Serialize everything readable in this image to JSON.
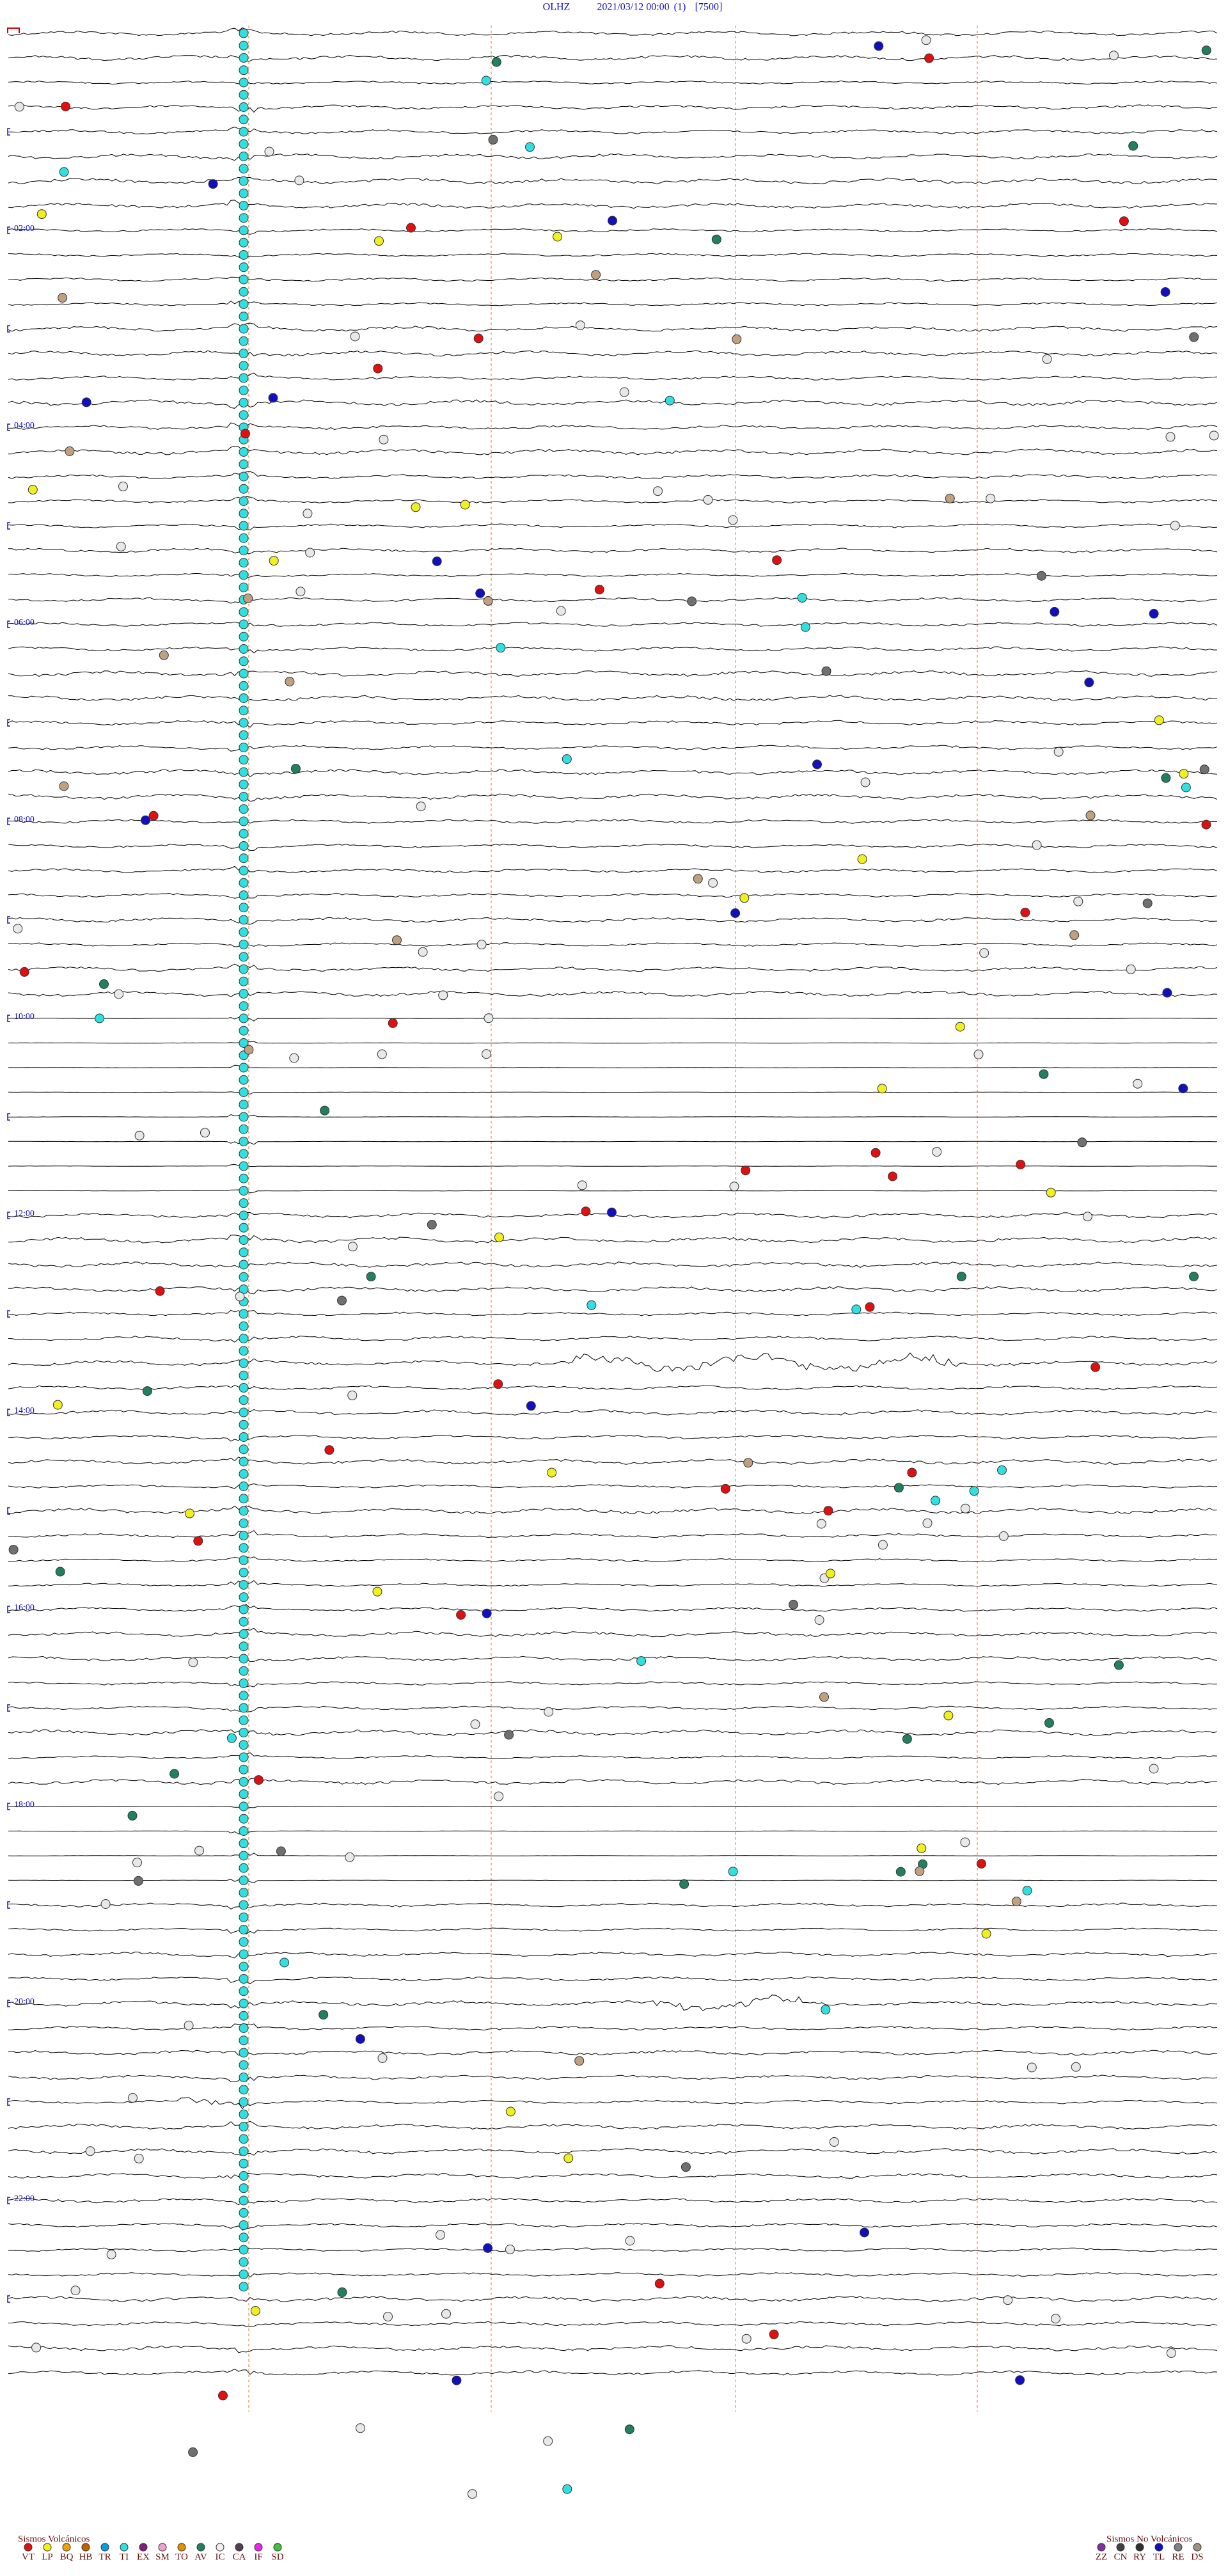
{
  "header": {
    "station": "OLHZ",
    "datetime": "2021/03/12 00:00",
    "index": "(1)",
    "scale": "[7500]"
  },
  "time_labels": [
    "02:00",
    "04:00",
    "06:00",
    "08:00",
    "10:00",
    "12:00",
    "14:00",
    "16:00",
    "18:00",
    "20:00",
    "22:00"
  ],
  "legend": {
    "volcanic": {
      "title": "Sismos Volcánicos",
      "items": [
        {
          "label": "VT",
          "color": "#e01010"
        },
        {
          "label": "LP",
          "color": "#f0f020"
        },
        {
          "label": "BQ",
          "color": "#f0a000"
        },
        {
          "label": "HB",
          "color": "#c06000"
        },
        {
          "label": "TR",
          "color": "#00a0e0"
        },
        {
          "label": "TI",
          "color": "#30e0e0"
        },
        {
          "label": "EX",
          "color": "#802080"
        },
        {
          "label": "SM",
          "color": "#f0a0d0"
        },
        {
          "label": "TO",
          "color": "#e09000"
        },
        {
          "label": "AV",
          "color": "#208060"
        },
        {
          "label": "IC",
          "color": "#f0f0f0"
        },
        {
          "label": "CA",
          "color": "#504050"
        },
        {
          "label": "IF",
          "color": "#f020f0"
        },
        {
          "label": "SD",
          "color": "#40c040"
        }
      ]
    },
    "non_volcanic": {
      "title": "Sismos No Volcánicos",
      "items": [
        {
          "label": "ZZ",
          "color": "#8030a0"
        },
        {
          "label": "CN",
          "color": "#404040"
        },
        {
          "label": "RY",
          "color": "#303030"
        },
        {
          "label": "TL",
          "color": "#1010c0"
        },
        {
          "label": "RE",
          "color": "#808080"
        },
        {
          "label": "DS",
          "color": "#a09080"
        }
      ]
    }
  }
}
